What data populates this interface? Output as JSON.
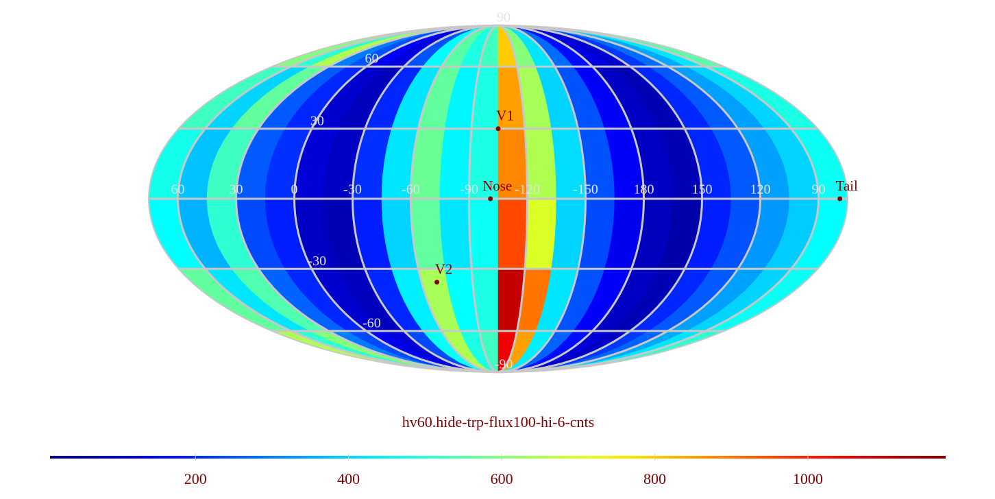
{
  "chart_data": {
    "type": "heatmap",
    "projection": "mollweide",
    "center_lon": -105,
    "title": "hv60.hide-trp-flux100-hi-6-cnts",
    "colormap": "jet",
    "clim": [
      10,
      1180
    ],
    "colorbar_ticks": [
      200,
      400,
      600,
      800,
      1000
    ],
    "lon_bins": [
      75,
      60,
      45,
      30,
      15,
      0,
      -15,
      -30,
      -45,
      -60,
      -75,
      -90,
      -105,
      -120,
      -135,
      -150,
      -165,
      -180,
      165,
      150,
      135,
      120,
      105,
      90,
      75
    ],
    "lat_bins": [
      90,
      60,
      30,
      0,
      -30,
      -60,
      -90
    ],
    "values": [
      [
        600,
        500,
        650,
        300,
        250,
        150,
        120,
        250,
        450,
        550,
        480,
        520,
        800,
        600,
        420,
        280,
        170,
        120,
        100,
        220,
        280,
        350,
        420,
        550
      ],
      [
        520,
        400,
        560,
        260,
        200,
        100,
        80,
        200,
        420,
        560,
        440,
        480,
        850,
        640,
        400,
        250,
        150,
        90,
        70,
        200,
        260,
        340,
        400,
        480
      ],
      [
        470,
        380,
        520,
        260,
        210,
        110,
        90,
        210,
        420,
        570,
        440,
        480,
        880,
        650,
        410,
        250,
        150,
        90,
        70,
        200,
        260,
        340,
        400,
        460
      ],
      [
        450,
        360,
        500,
        240,
        190,
        90,
        70,
        190,
        400,
        560,
        420,
        460,
        950,
        700,
        400,
        240,
        140,
        80,
        60,
        190,
        250,
        330,
        390,
        450
      ],
      [
        560,
        420,
        540,
        270,
        200,
        100,
        80,
        200,
        430,
        640,
        450,
        480,
        1100,
        900,
        420,
        250,
        150,
        90,
        70,
        200,
        260,
        340,
        400,
        460
      ],
      [
        650,
        500,
        600,
        300,
        240,
        140,
        110,
        240,
        460,
        650,
        480,
        520,
        1050,
        850,
        430,
        270,
        170,
        110,
        90,
        220,
        270,
        350,
        420,
        500
      ]
    ],
    "xticks": [
      60,
      30,
      0,
      -30,
      -60,
      -90,
      -120,
      -150,
      180,
      150,
      120,
      90
    ],
    "yticks": [
      90,
      60,
      30,
      -30,
      -60,
      -90
    ],
    "grid": true,
    "points": [
      {
        "name": "V1",
        "lon": -105,
        "lat": 30,
        "color": "#800000"
      },
      {
        "name": "Nose",
        "lon": -101,
        "lat": 0,
        "color": "#800000"
      },
      {
        "name": "V2",
        "lon": -69,
        "lat": -36,
        "color": "#800000"
      },
      {
        "name": "Tail",
        "lon": 79,
        "lat": 0,
        "color": "#800000"
      }
    ]
  }
}
